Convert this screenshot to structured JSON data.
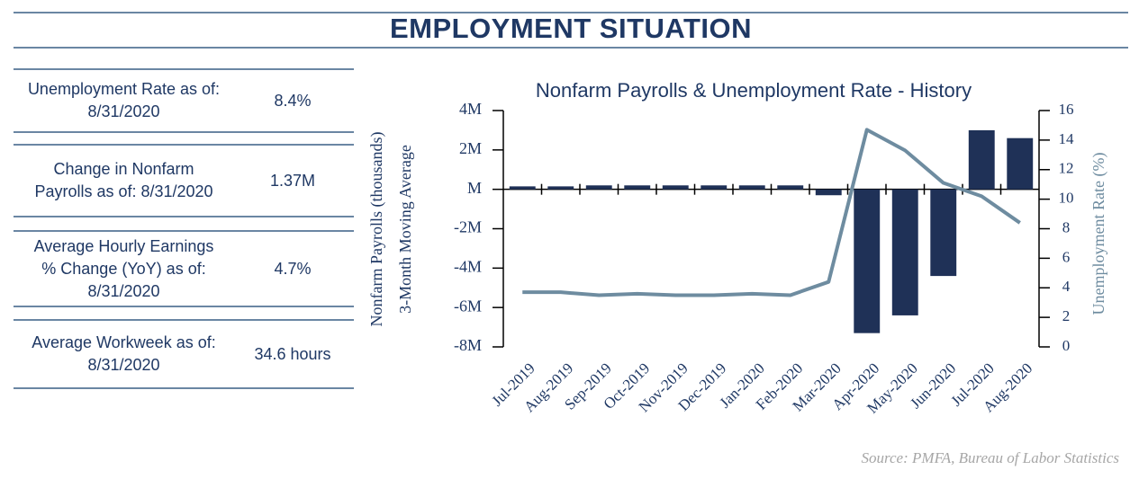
{
  "header": {
    "title": "EMPLOYMENT SITUATION"
  },
  "table": {
    "rows": [
      {
        "label": [
          "Unemployment Rate as of:",
          "8/31/2020"
        ],
        "value": "8.4%"
      },
      {
        "label": [
          "Change in Nonfarm",
          "Payrolls as of: 8/31/2020"
        ],
        "value": "1.37M"
      },
      {
        "label": [
          "Average Hourly Earnings",
          "% Change (YoY) as of:",
          "8/31/2020"
        ],
        "value": "4.7%"
      },
      {
        "label": [
          "Average Workweek as of:",
          "8/31/2020"
        ],
        "value": "34.6 hours"
      }
    ]
  },
  "chart_data": {
    "type": "bar",
    "title": "Nonfarm Payrolls & Unemployment Rate - History",
    "ylabel": [
      "Nonfarm Payrolls (thousands)",
      "3-Month Moving Average"
    ],
    "y2label": "Unemployment  Rate (%)",
    "categories": [
      "Jul-2019",
      "Aug-2019",
      "Sep-2019",
      "Oct-2019",
      "Nov-2019",
      "Dec-2019",
      "Jan-2020",
      "Feb-2020",
      "Mar-2020",
      "Apr-2020",
      "May-2020",
      "Jun-2020",
      "Jul-2020",
      "Aug-2020"
    ],
    "series": [
      {
        "type": "bar",
        "color": "#1f3157",
        "values": [
          0.15,
          0.15,
          0.2,
          0.2,
          0.2,
          0.2,
          0.2,
          0.2,
          -0.3,
          -7.3,
          -6.4,
          -4.4,
          3.0,
          2.6
        ]
      },
      {
        "type": "line",
        "axis": "y2",
        "color": "#6e8ca0",
        "values": [
          3.7,
          3.7,
          3.5,
          3.6,
          3.5,
          3.5,
          3.6,
          3.5,
          4.4,
          14.7,
          13.3,
          11.1,
          10.2,
          8.4
        ]
      }
    ],
    "ylim": [
      -8,
      4
    ],
    "yticks": [
      {
        "value": -8,
        "label": "-8M"
      },
      {
        "value": -6,
        "label": "-6M"
      },
      {
        "value": -4,
        "label": "-4M"
      },
      {
        "value": -2,
        "label": "-2M"
      },
      {
        "value": 0,
        "label": "M"
      },
      {
        "value": 2,
        "label": "2M"
      },
      {
        "value": 4,
        "label": "4M"
      }
    ],
    "y2lim": [
      0,
      16
    ],
    "y2ticks": [
      0,
      2,
      4,
      6,
      8,
      10,
      12,
      14,
      16
    ],
    "grid": false
  },
  "source": "Source:  PMFA,  Bureau of Labor Statistics"
}
